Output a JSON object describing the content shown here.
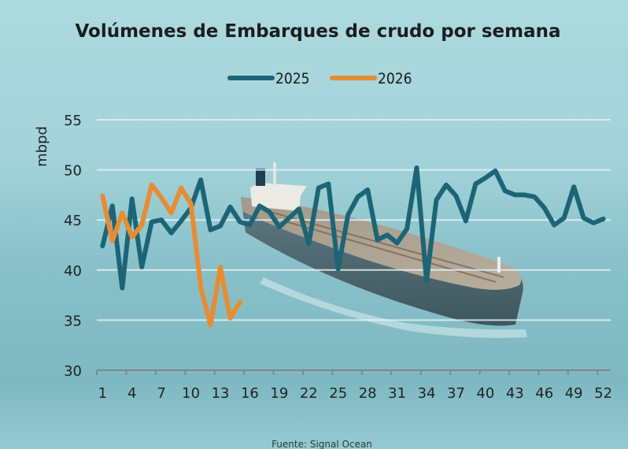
{
  "chart_data": {
    "type": "line",
    "title": "Volúmenes de Embarques de crudo por semana",
    "xlabel": "",
    "ylabel": "mbpd",
    "ylim": [
      30,
      55
    ],
    "xlim": [
      1,
      52
    ],
    "yticks": [
      30,
      35,
      40,
      45,
      50,
      55
    ],
    "xticks": [
      1,
      4,
      7,
      10,
      13,
      16,
      19,
      22,
      25,
      28,
      31,
      34,
      37,
      40,
      43,
      46,
      49,
      52
    ],
    "grid": true,
    "legend_position": "top-center",
    "source": "Fuente: Signal Ocean",
    "series": [
      {
        "name": "2025",
        "color": "#1c6577",
        "x": [
          1,
          2,
          3,
          4,
          5,
          6,
          7,
          8,
          9,
          10,
          11,
          12,
          13,
          14,
          15,
          16,
          17,
          18,
          19,
          20,
          21,
          22,
          23,
          24,
          25,
          26,
          27,
          28,
          29,
          30,
          31,
          32,
          33,
          34,
          35,
          36,
          37,
          38,
          39,
          40,
          41,
          42,
          43,
          44,
          45,
          46,
          47,
          48,
          49,
          50,
          51,
          52
        ],
        "values": [
          42.4,
          46.4,
          38.2,
          47.1,
          40.3,
          44.8,
          45.0,
          43.7,
          44.9,
          46.2,
          49.0,
          44.0,
          44.4,
          46.3,
          44.8,
          44.5,
          46.4,
          45.8,
          44.3,
          45.2,
          46.1,
          42.6,
          48.2,
          48.6,
          40.1,
          45.5,
          47.3,
          48.0,
          43.0,
          43.5,
          42.7,
          44.1,
          50.2,
          38.9,
          47.0,
          48.5,
          47.4,
          44.9,
          48.6,
          49.2,
          49.9,
          47.9,
          47.5,
          47.5,
          47.3,
          46.2,
          44.5,
          45.2,
          48.3,
          45.2,
          44.7,
          45.1
        ]
      },
      {
        "name": "2026",
        "color": "#e88c33",
        "x": [
          1,
          2,
          3,
          4,
          5,
          6,
          7,
          8,
          9,
          10,
          11,
          12,
          13,
          14,
          15
        ],
        "values": [
          47.4,
          42.9,
          45.7,
          43.3,
          44.5,
          48.5,
          47.2,
          45.7,
          48.2,
          46.6,
          38.3,
          34.5,
          40.3,
          35.2,
          36.8
        ]
      }
    ]
  },
  "background": {
    "description": "oil-tanker-at-sea-photo"
  }
}
